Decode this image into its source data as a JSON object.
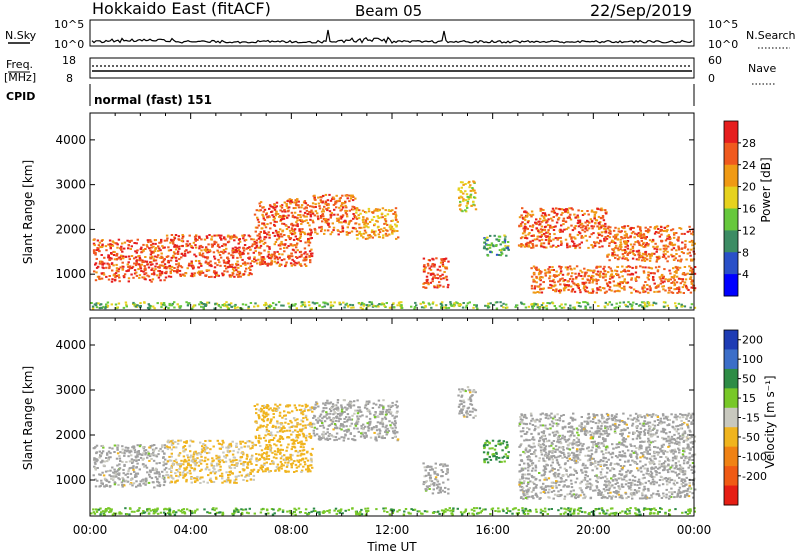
{
  "header": {
    "station": "Hokkaido East (fitACF)",
    "beam": "Beam 05",
    "date": "22/Sep/2019"
  },
  "nsky_panel": {
    "left_label": "N.Sky",
    "right_label": "N.Search",
    "left_ticks": [
      "10^5",
      "10^0"
    ],
    "right_ticks": [
      "10^5",
      "10^0"
    ]
  },
  "freq_panel": {
    "left_label_1": "Freq.",
    "left_label_2": "[MHz]",
    "right_label": "Nave",
    "left_ticks": [
      "18",
      "8"
    ],
    "right_ticks": [
      "60",
      "0"
    ]
  },
  "cpid_panel": {
    "label": "CPID",
    "mode_text": "normal (fast) 151"
  },
  "x_axis": {
    "label": "Time UT",
    "ticks": [
      "00:00",
      "04:00",
      "08:00",
      "12:00",
      "16:00",
      "20:00",
      "00:00"
    ]
  },
  "colors": {
    "power_scale": [
      "#0000ff",
      "#2a50c8",
      "#3c8c64",
      "#66c83c",
      "#e6d21e",
      "#f09a14",
      "#f05a1e",
      "#e61e1e"
    ],
    "velocity_scale": [
      "#1e3cb4",
      "#3c6ec8",
      "#2e8c46",
      "#78c828",
      "#c8c8be",
      "#f0b41e",
      "#f08214",
      "#f05a14",
      "#e61e14"
    ],
    "ground_scatter": "#a0a0a0"
  },
  "chart_data": [
    {
      "type": "heatmap",
      "panel": "power",
      "xlabel": "",
      "ylabel": "Slant Range [km]",
      "xlim": [
        0,
        24
      ],
      "ylim": [
        200,
        4600
      ],
      "yticks": [
        "1000",
        "2000",
        "3000",
        "4000"
      ],
      "colorbar": {
        "label": "Power [dB]",
        "ticks": [
          "4",
          "8",
          "12",
          "16",
          "20",
          "24",
          "28"
        ],
        "range": [
          0,
          32
        ]
      },
      "regions": [
        {
          "t0": 0.1,
          "t1": 3.0,
          "r0": 850,
          "r1": 1800,
          "value": 27
        },
        {
          "t0": 3.0,
          "t1": 6.5,
          "r0": 950,
          "r1": 1900,
          "value": 27
        },
        {
          "t0": 6.5,
          "t1": 8.8,
          "r0": 1200,
          "r1": 2700,
          "value": 26
        },
        {
          "t0": 8.8,
          "t1": 10.5,
          "r0": 1900,
          "r1": 2800,
          "value": 25
        },
        {
          "t0": 10.5,
          "t1": 12.2,
          "r0": 1800,
          "r1": 2500,
          "value": 22
        },
        {
          "t0": 13.2,
          "t1": 14.2,
          "r0": 700,
          "r1": 1400,
          "value": 27
        },
        {
          "t0": 14.6,
          "t1": 15.3,
          "r0": 2400,
          "r1": 3100,
          "value": 18
        },
        {
          "t0": 15.6,
          "t1": 16.6,
          "r0": 1400,
          "r1": 1900,
          "value": 12
        },
        {
          "t0": 17.0,
          "t1": 20.5,
          "r0": 1600,
          "r1": 2500,
          "value": 26
        },
        {
          "t0": 20.5,
          "t1": 24.0,
          "r0": 1300,
          "r1": 2100,
          "value": 25
        },
        {
          "t0": 17.5,
          "t1": 24.0,
          "r0": 600,
          "r1": 1200,
          "value": 25
        },
        {
          "t0": 0.0,
          "t1": 24.0,
          "r0": 250,
          "r1": 400,
          "value": 14
        }
      ]
    },
    {
      "type": "heatmap",
      "panel": "velocity",
      "xlabel": "Time UT",
      "ylabel": "Slant Range [km]",
      "xlim": [
        0,
        24
      ],
      "ylim": [
        200,
        4600
      ],
      "yticks": [
        "1000",
        "2000",
        "3000",
        "4000"
      ],
      "colorbar": {
        "label": "Velocity [m s⁻¹]",
        "ticks": [
          "200",
          "100",
          "50",
          "15",
          "-15",
          "-50",
          "-100",
          "-200"
        ],
        "range": [
          -250,
          250
        ]
      },
      "regions": [
        {
          "t0": 0.1,
          "t1": 3.0,
          "r0": 850,
          "r1": 1800,
          "value": 0
        },
        {
          "t0": 3.0,
          "t1": 6.5,
          "r0": 950,
          "r1": 1900,
          "value": -20
        },
        {
          "t0": 6.5,
          "t1": 8.8,
          "r0": 1200,
          "r1": 2700,
          "value": -30
        },
        {
          "t0": 8.8,
          "t1": 12.2,
          "r0": 1900,
          "r1": 2800,
          "value": 0
        },
        {
          "t0": 13.2,
          "t1": 14.2,
          "r0": 700,
          "r1": 1400,
          "value": 0
        },
        {
          "t0": 14.6,
          "t1": 15.3,
          "r0": 2400,
          "r1": 3100,
          "value": 0
        },
        {
          "t0": 15.6,
          "t1": 16.6,
          "r0": 1400,
          "r1": 1900,
          "value": 60
        },
        {
          "t0": 17.0,
          "t1": 24.0,
          "r0": 600,
          "r1": 2500,
          "value": 0
        },
        {
          "t0": 0.0,
          "t1": 24.0,
          "r0": 250,
          "r1": 400,
          "value": 40
        }
      ]
    }
  ]
}
